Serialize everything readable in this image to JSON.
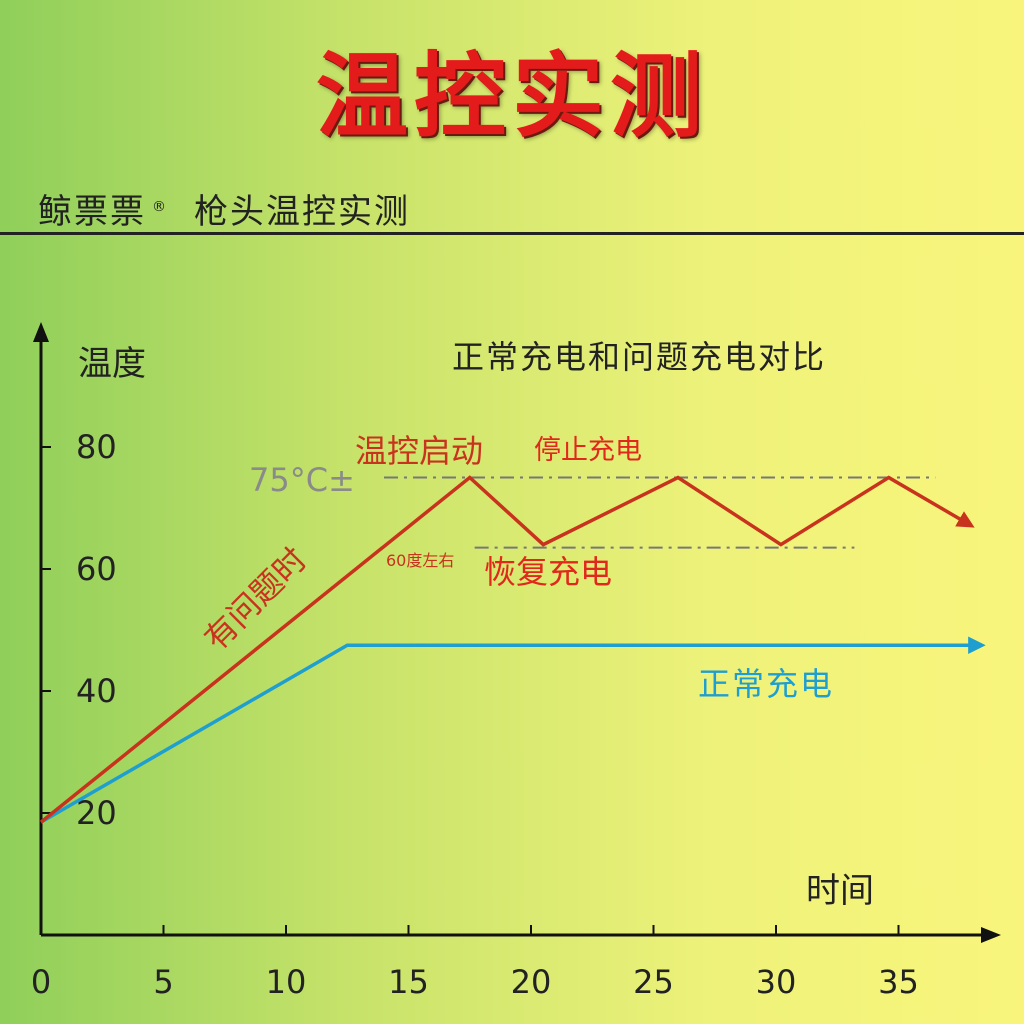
{
  "header": {
    "title": "温控实测",
    "brand": "鲸票票",
    "brand_mark": "®",
    "subtitle": "枪头温控实测"
  },
  "colors": {
    "title_red": "#e31b1b",
    "problem_line": "#c8331e",
    "normal_line": "#1f9fd0",
    "annotation_red": "#e0281c",
    "threshold_gray": "#777777"
  },
  "chart_data": {
    "type": "line",
    "title": "正常充电和问题充电对比",
    "xlabel": "时间",
    "ylabel": "温度",
    "x_ticks": [
      0,
      5,
      10,
      15,
      20,
      25,
      30,
      35
    ],
    "y_ticks": [
      20,
      40,
      60,
      80
    ],
    "xlim": [
      0,
      39
    ],
    "ylim": [
      20,
      87
    ],
    "grid": false,
    "series": [
      {
        "name": "有问题时",
        "color": "#c8331e",
        "points": [
          [
            0,
            18.5
          ],
          [
            17.5,
            75
          ],
          [
            20.5,
            64
          ],
          [
            26,
            75
          ],
          [
            30.2,
            64
          ],
          [
            34.6,
            75
          ],
          [
            37.8,
            67.5
          ]
        ]
      },
      {
        "name": "正常充电",
        "color": "#1f9fd0",
        "points": [
          [
            0,
            18.5
          ],
          [
            12.5,
            47.5
          ],
          [
            38.2,
            47.5
          ]
        ]
      }
    ],
    "reference_lines": [
      {
        "y": 75,
        "x_start": 14,
        "x_end": 36.5,
        "label": "75°C±"
      },
      {
        "y": 63.5,
        "x_start": 17.7,
        "x_end": 33.2,
        "label": "60度左右"
      }
    ],
    "annotations": {
      "temp_control_start": "温控启动",
      "stop_charging": "停止充电",
      "resume_charging": "恢复充电"
    }
  }
}
